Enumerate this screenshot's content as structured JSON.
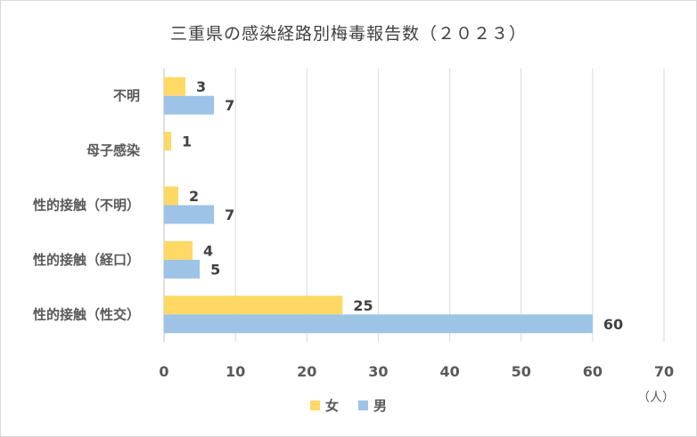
{
  "chart_data": {
    "type": "bar",
    "orientation": "horizontal",
    "title": "三重県の感染経路別梅毒報告数（２０２３）",
    "categories": [
      "不明",
      "母子感染",
      "性的接触（不明）",
      "性的接触（経口）",
      "性的接触（性交）"
    ],
    "series": [
      {
        "name": "女",
        "color": "#FFD966",
        "values": [
          3,
          1,
          2,
          4,
          25
        ]
      },
      {
        "name": "男",
        "color": "#9DC3E6",
        "values": [
          7,
          null,
          7,
          5,
          60
        ]
      }
    ],
    "xlim": [
      0,
      70
    ],
    "xticks": [
      "0",
      "10",
      "20",
      "30",
      "40",
      "50",
      "60",
      "70"
    ],
    "unit": "（人）",
    "grid": "vertical",
    "legend_position": "bottom"
  }
}
